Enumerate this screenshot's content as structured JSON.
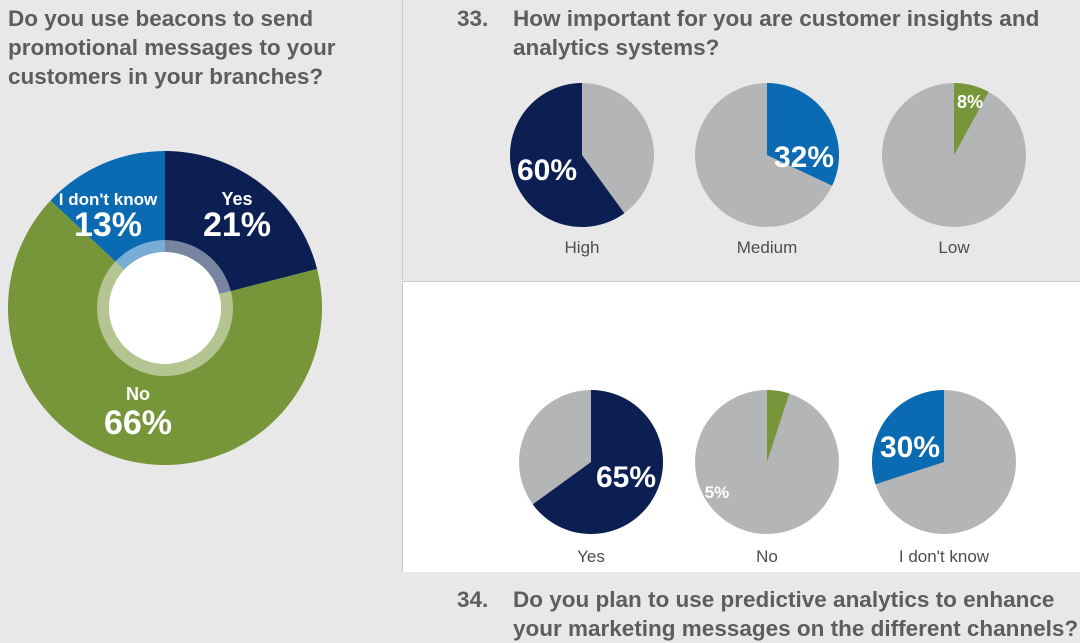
{
  "left": {
    "question": "Do you use beacons to send promotional messages to your customers in your branches?"
  },
  "q33": {
    "number": "33.",
    "text": "How important for you are customer insights and analytics systems?"
  },
  "q34": {
    "number": "34.",
    "text": "Do you plan to use predictive analytics to enhance your marketing messages on the different channels?"
  },
  "colors": {
    "navy": "#0b1f52",
    "blue": "#0a6ab2",
    "green": "#77963a",
    "gray": "#b3b5b7",
    "ring": "#a7b88a"
  },
  "chart_data": [
    {
      "type": "pie",
      "variant": "donut",
      "title": "Do you use beacons to send promotional messages to your customers in your branches?",
      "slices": [
        {
          "label": "Yes",
          "value": 21,
          "value_label": "21%",
          "color": "#0b1f52"
        },
        {
          "label": "No",
          "value": 66,
          "value_label": "66%",
          "color": "#77963a"
        },
        {
          "label": "I don't know",
          "value": 13,
          "value_label": "13%",
          "color": "#0a6ab2"
        }
      ]
    },
    {
      "type": "pie",
      "title": "33. How important for you are customer insights and analytics systems?",
      "pies": [
        {
          "category": "High",
          "value": 60,
          "value_label": "60%",
          "color": "#0b1f52"
        },
        {
          "category": "Medium",
          "value": 32,
          "value_label": "32%",
          "color": "#0a6ab2"
        },
        {
          "category": "Low",
          "value": 8,
          "value_label": "8%",
          "color": "#77963a"
        }
      ]
    },
    {
      "type": "pie",
      "title": "34. Do you plan to use predictive analytics to enhance your marketing messages on the different channels?",
      "pies": [
        {
          "category": "Yes",
          "value": 65,
          "value_label": "65%",
          "color": "#0b1f52"
        },
        {
          "category": "No",
          "value": 5,
          "value_label": "5%",
          "color": "#77963a"
        },
        {
          "category": "I don't know",
          "value": 30,
          "value_label": "30%",
          "color": "#0a6ab2"
        }
      ]
    }
  ]
}
